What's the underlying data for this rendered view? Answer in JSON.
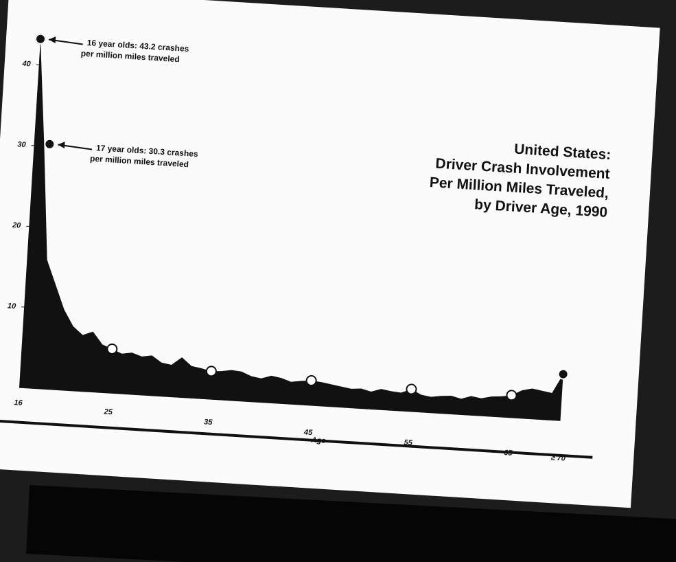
{
  "chart_data": {
    "type": "area",
    "title": [
      "United States:",
      "Driver Crash Involvement",
      "Per Million Miles Traveled,",
      "by Driver Age, 1990"
    ],
    "x_label": "Age",
    "categories": [
      "16",
      null,
      null,
      null,
      null,
      null,
      null,
      null,
      null,
      "25",
      null,
      null,
      null,
      null,
      null,
      null,
      null,
      null,
      null,
      "35",
      null,
      null,
      null,
      null,
      null,
      null,
      null,
      null,
      null,
      "45",
      null,
      null,
      null,
      null,
      null,
      null,
      null,
      null,
      null,
      "55",
      null,
      null,
      null,
      null,
      null,
      null,
      null,
      null,
      null,
      "65",
      null,
      null,
      null,
      null,
      "≥ 70"
    ],
    "values": [
      43.2,
      30.3,
      16,
      13,
      10,
      8,
      7,
      7.5,
      6,
      5.5,
      5,
      5.2,
      4.8,
      5,
      4.2,
      4,
      5,
      4,
      3.8,
      3.5,
      3.6,
      3.8,
      3.7,
      3.2,
      3,
      3.4,
      3.2,
      2.8,
      3,
      3.1,
      3,
      2.8,
      2.6,
      2.4,
      2.5,
      2.2,
      2.6,
      2.4,
      2.3,
      2.8,
      2.2,
      2,
      2.2,
      2.3,
      2,
      2.4,
      2.2,
      2.5,
      2.6,
      2.8,
      3.5,
      3.8,
      3.6,
      3.4,
      5.8
    ],
    "color": "#111111",
    "ylim": [
      0,
      45
    ],
    "yticks": [
      10,
      20,
      30,
      40
    ],
    "annotations": [
      {
        "text": [
          "16 year olds: 43.2 crashes",
          "per million miles traveled"
        ]
      },
      {
        "text": [
          "17 year olds: 30.3 crashes",
          "per million miles traveled"
        ]
      }
    ]
  }
}
